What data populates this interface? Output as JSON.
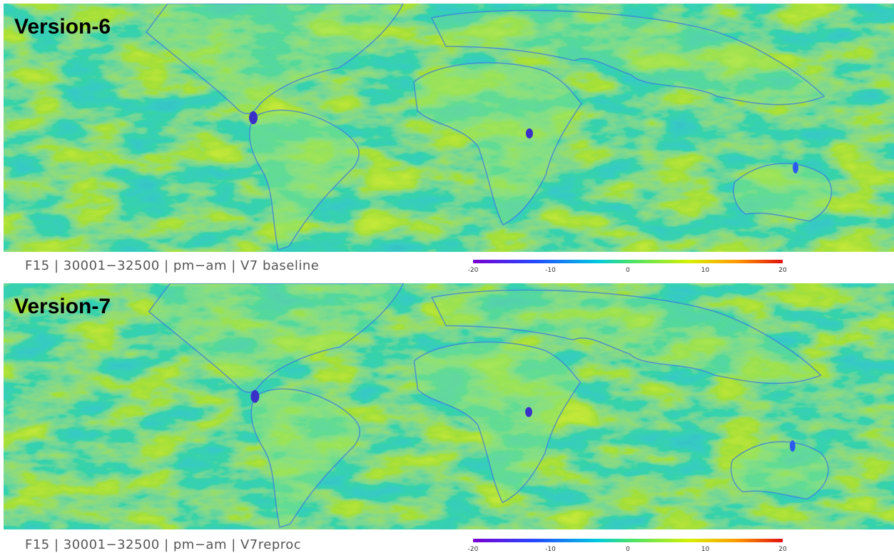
{
  "panels": [
    {
      "title": "Version-6",
      "caption": "F15 | 30001−32500 | pm−am | V7 baseline",
      "colorbar": {
        "lim": [
          -20,
          20
        ],
        "ticks": [
          -20,
          -10,
          0,
          10,
          20
        ]
      }
    },
    {
      "title": "Version-7",
      "caption": "F15 | 30001−32500 | pm−am | V7reproc",
      "colorbar": {
        "lim": [
          -20,
          20
        ],
        "ticks": [
          -20,
          -10,
          0,
          10,
          20
        ]
      }
    }
  ]
}
